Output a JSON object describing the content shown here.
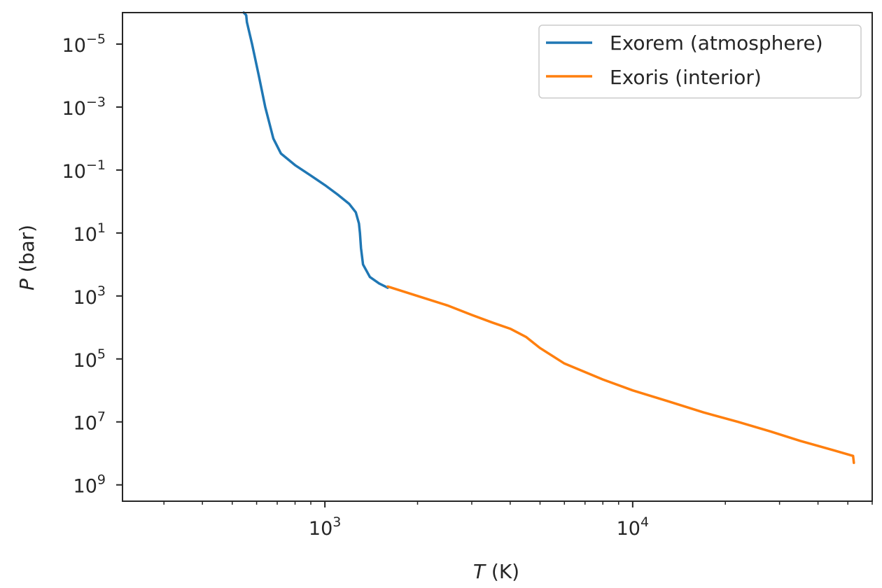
{
  "chart_data": {
    "type": "line",
    "xlabel": {
      "italic": "T",
      "rest": " (K)"
    },
    "ylabel": {
      "italic": "P",
      "rest": " (bar)"
    },
    "x_scale": "log",
    "y_scale": "log",
    "y_inverted": true,
    "xlim": [
      220,
      60000
    ],
    "ylim": [
      1e-06,
      3300000000.0
    ],
    "grid": false,
    "legend_position": "upper right",
    "x_ticks": [
      {
        "value": 1000,
        "base": "10",
        "exp": "3"
      },
      {
        "value": 10000,
        "base": "10",
        "exp": "4"
      }
    ],
    "y_ticks": [
      {
        "value": 1e-05,
        "base": "10",
        "exp": "−5"
      },
      {
        "value": 0.001,
        "base": "10",
        "exp": "−3"
      },
      {
        "value": 0.1,
        "base": "10",
        "exp": "−1"
      },
      {
        "value": 10,
        "base": "10",
        "exp": "1"
      },
      {
        "value": 1000,
        "base": "10",
        "exp": "3"
      },
      {
        "value": 100000,
        "base": "10",
        "exp": "5"
      },
      {
        "value": 10000000,
        "base": "10",
        "exp": "7"
      },
      {
        "value": 1000000000,
        "base": "10",
        "exp": "9"
      }
    ],
    "series": [
      {
        "name": "Exorem (atmosphere)",
        "color": "#1f77b4",
        "points": [
          [
            545,
            1e-06
          ],
          [
            555,
            1.2e-06
          ],
          [
            558,
            2e-06
          ],
          [
            580,
            1e-05
          ],
          [
            610,
            0.0001
          ],
          [
            640,
            0.001
          ],
          [
            680,
            0.01
          ],
          [
            720,
            0.03
          ],
          [
            800,
            0.07
          ],
          [
            900,
            0.15
          ],
          [
            1000,
            0.3
          ],
          [
            1100,
            0.6
          ],
          [
            1200,
            1.2
          ],
          [
            1260,
            2.2
          ],
          [
            1290,
            5
          ],
          [
            1300,
            10
          ],
          [
            1310,
            30
          ],
          [
            1330,
            100
          ],
          [
            1400,
            250
          ],
          [
            1500,
            400
          ],
          [
            1600,
            550
          ]
        ]
      },
      {
        "name": "Exoris (interior)",
        "color": "#ff7f0e",
        "points": [
          [
            1600,
            500
          ],
          [
            2000,
            1000
          ],
          [
            2500,
            2000
          ],
          [
            3000,
            4000
          ],
          [
            3500,
            7000
          ],
          [
            4000,
            11000
          ],
          [
            4500,
            20000
          ],
          [
            5000,
            45000
          ],
          [
            6000,
            140000.0
          ],
          [
            8000,
            450000.0
          ],
          [
            10000,
            1000000.0
          ],
          [
            13000,
            2200000.0
          ],
          [
            17000,
            5000000.0
          ],
          [
            22000,
            10000000.0
          ],
          [
            28000,
            20000000.0
          ],
          [
            35000,
            40000000.0
          ],
          [
            45000,
            80000000.0
          ],
          [
            52000,
            120000000.0
          ],
          [
            52300,
            200000000.0
          ]
        ]
      }
    ]
  }
}
